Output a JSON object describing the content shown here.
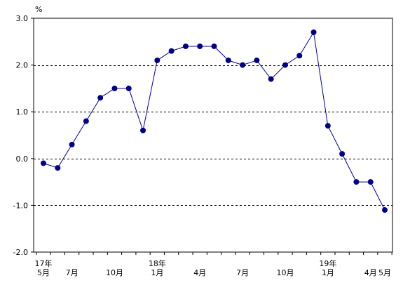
{
  "chart_data": {
    "type": "line",
    "unit": "%",
    "ylim": [
      -2.0,
      3.0
    ],
    "yticks": [
      "3.0",
      "2.0",
      "1.0",
      "0.0",
      "-1.0",
      "-2.0"
    ],
    "ytick_values": [
      3.0,
      2.0,
      1.0,
      0.0,
      -1.0,
      -2.0
    ],
    "gridlines": "dashed at 2.0, 1.0, 0.0, -1.0",
    "x_labels": [
      {
        "index": 0,
        "line1": "17年",
        "line2": "5月"
      },
      {
        "index": 2,
        "line1": "",
        "line2": "7月"
      },
      {
        "index": 5,
        "line1": "",
        "line2": "10月"
      },
      {
        "index": 8,
        "line1": "18年",
        "line2": "1月"
      },
      {
        "index": 11,
        "line1": "",
        "line2": "4月"
      },
      {
        "index": 14,
        "line1": "",
        "line2": "7月"
      },
      {
        "index": 17,
        "line1": "",
        "line2": "10月"
      },
      {
        "index": 20,
        "line1": "19年",
        "line2": "1月"
      },
      {
        "index": 23,
        "line1": "",
        "line2": "4月"
      },
      {
        "index": 24,
        "line1": "",
        "line2": "5月"
      }
    ],
    "x": [
      "17年5月",
      "6月",
      "7月",
      "8月",
      "9月",
      "10月",
      "11月",
      "12月",
      "18年1月",
      "2月",
      "3月",
      "4月",
      "5月",
      "6月",
      "7月",
      "8月",
      "9月",
      "10月",
      "11月",
      "12月",
      "19年1月",
      "2月",
      "3月",
      "4月",
      "5月"
    ],
    "series": [
      {
        "values": [
          -0.1,
          -0.2,
          0.3,
          0.8,
          1.3,
          1.5,
          1.5,
          0.6,
          2.1,
          2.3,
          2.4,
          2.4,
          2.4,
          2.1,
          2.0,
          2.1,
          1.7,
          2.0,
          2.2,
          2.7,
          0.7,
          0.1,
          -0.5,
          -0.5,
          -1.1
        ],
        "color": "#000080"
      }
    ],
    "line_color": "#000080",
    "marker_color": "#000080"
  }
}
